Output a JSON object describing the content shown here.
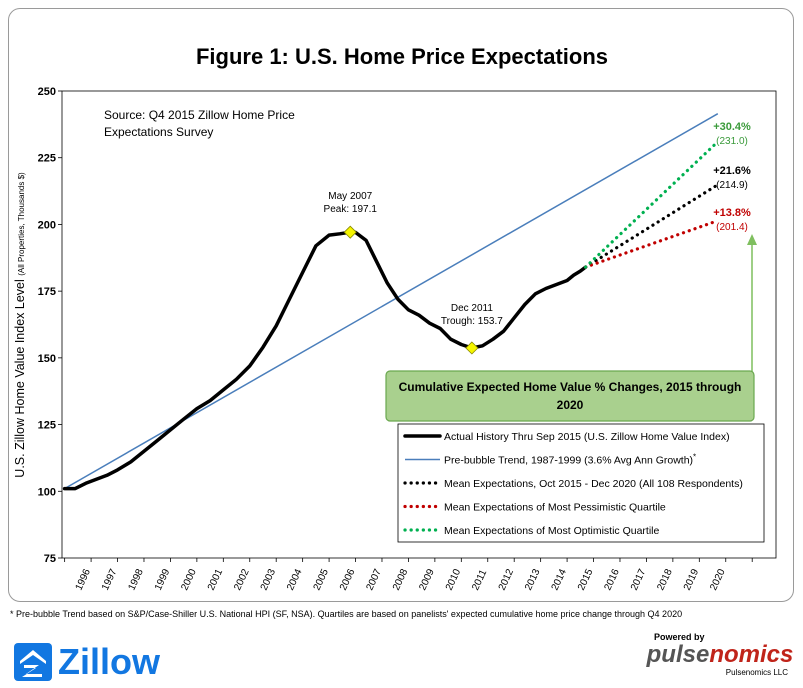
{
  "chart_data": {
    "type": "line",
    "title": "Figure 1: U.S. Home Price Expectations",
    "ylabel": "U.S. Zillow Home Value Index Level",
    "ylabel_sub": "(All Properties, Thousands $)",
    "ylim": [
      75,
      250
    ],
    "yticks": [
      75,
      100,
      125,
      150,
      175,
      200,
      225,
      250
    ],
    "xticks": [
      "1996",
      "1997",
      "1998",
      "1999",
      "2000",
      "2001",
      "2002",
      "2003",
      "2004",
      "2005",
      "2006",
      "2007",
      "2008",
      "2009",
      "2010",
      "2011",
      "2012",
      "2013",
      "2014",
      "2015",
      "2016",
      "2017",
      "2018",
      "2019",
      "2020"
    ],
    "xlim": [
      1995.9,
      2022.9
    ],
    "source_text": [
      "Source: Q4 2015 Zillow Home Price",
      "Expectations Survey"
    ],
    "series": [
      {
        "name": "Actual History Thru Sep 2015 (U.S. Zillow Home Value Index)",
        "color": "#000000",
        "style": "solid-thick",
        "x": [
          1996.0,
          1996.4,
          1996.8,
          1997.2,
          1997.6,
          1998.0,
          1998.5,
          1999.0,
          1999.5,
          2000.0,
          2000.5,
          2001.0,
          2001.5,
          2002.0,
          2002.5,
          2003.0,
          2003.5,
          2004.0,
          2004.5,
          2005.0,
          2005.5,
          2006.0,
          2006.4,
          2006.8,
          2007.0,
          2007.4,
          2007.8,
          2008.2,
          2008.6,
          2009.0,
          2009.4,
          2009.8,
          2010.2,
          2010.6,
          2011.0,
          2011.4,
          2011.8,
          2012.2,
          2012.6,
          2013.0,
          2013.4,
          2013.8,
          2014.2,
          2014.6,
          2015.0,
          2015.25,
          2015.5,
          2015.7
        ],
        "values": [
          101,
          101,
          103,
          104.5,
          106,
          108,
          111,
          115,
          119,
          123,
          127,
          131,
          134,
          138,
          142,
          147,
          154,
          162,
          172,
          182,
          192,
          196,
          196.5,
          197.1,
          197,
          194,
          186,
          178,
          172,
          168,
          166,
          163,
          161,
          157,
          155,
          153.7,
          154.5,
          157,
          160,
          165,
          170,
          174,
          176,
          177.5,
          179,
          181,
          182.5,
          184
        ]
      },
      {
        "name": "Pre-bubble Trend, 1987-1999 (3.6% Avg Ann Growth)",
        "name_suffix": "*",
        "color": "#4a7ebb",
        "style": "solid-thin",
        "x": [
          1996.0,
          2020.7
        ],
        "values": [
          101,
          241.5
        ]
      },
      {
        "name": "Mean Expectations, Oct 2015 - Dec 2020 (All 108 Respondents)",
        "color": "#000000",
        "style": "dotted",
        "x": [
          2015.7,
          2020.7
        ],
        "values": [
          184,
          214.9
        ]
      },
      {
        "name": "Mean Expectations of Most Pessimistic Quartile",
        "color": "#c00000",
        "style": "dotted",
        "x": [
          2015.7,
          2020.7
        ],
        "values": [
          184,
          201.4
        ]
      },
      {
        "name": "Mean Expectations of Most Optimistic Quartile",
        "color": "#00b050",
        "style": "dotted",
        "x": [
          2015.7,
          2020.7
        ],
        "values": [
          184,
          231.0
        ]
      }
    ],
    "points": [
      {
        "x": 2006.8,
        "y": 197.1,
        "label1": "May 2007",
        "label2": "Peak: 197.1"
      },
      {
        "x": 2011.4,
        "y": 153.7,
        "label1": "Dec 2011",
        "label2": "Trough: 153.7"
      }
    ],
    "end_labels": [
      {
        "pct": "+30.4%",
        "val": "(231.0)",
        "color": "#3a9a3a",
        "y": 231.0
      },
      {
        "pct": "+21.6%",
        "val": "(214.9)",
        "color": "#000000",
        "y": 214.9
      },
      {
        "pct": "+13.8%",
        "val": "(201.4)",
        "color": "#c00000",
        "y": 201.4
      }
    ],
    "callout": "Cumulative Expected Home Value % Changes, 2015 through 2020",
    "legend_position": "bottom-right"
  },
  "footnote": "* Pre-bubble Trend based on S&P/Case-Shiller U.S. National HPI (SF, NSA).  Quartiles are based on panelists' expected cumulative home price change through Q4 2020",
  "logos": {
    "zillow": "Zillow",
    "powered_by": "Powered by",
    "pulse_a": "pulse",
    "pulse_b": "nomics",
    "pulse_llc": "Pulsenomics LLC"
  }
}
